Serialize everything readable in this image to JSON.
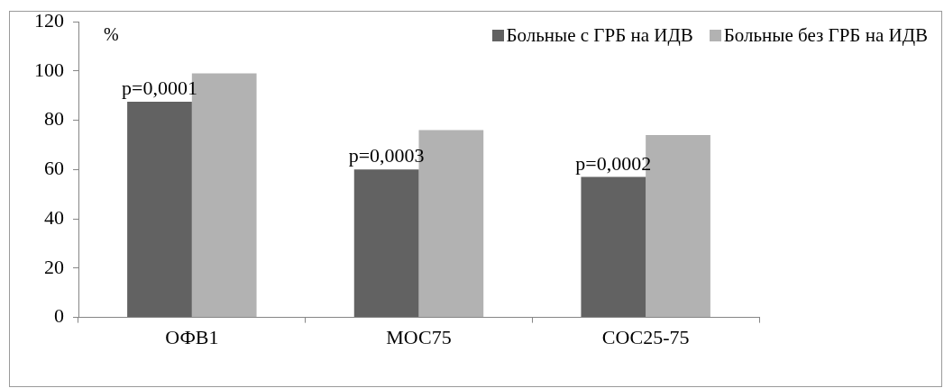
{
  "chart_data": {
    "type": "bar",
    "ylabel": "%",
    "categories": [
      "ОФВ1",
      "МОС75",
      "СОС25-75"
    ],
    "series": [
      {
        "name": "Больные с ГРБ на ИДВ",
        "color": "#626262",
        "values": [
          87.5,
          60,
          57
        ]
      },
      {
        "name": "Больные без ГРБ на ИДВ",
        "color": "#b2b2b2",
        "values": [
          99,
          76,
          74
        ]
      }
    ],
    "ylim": [
      0,
      120
    ],
    "yticks": [
      0,
      20,
      40,
      60,
      80,
      100,
      120
    ],
    "legend": "top right",
    "annotations": [
      {
        "text": "p=0,0001",
        "x": "ОФВ1",
        "y": 87.5
      },
      {
        "text": "p=0,0003",
        "x": "МОС75",
        "y": 60
      },
      {
        "text": "p=0,0002",
        "x": "СОС25-75",
        "y": 57
      }
    ]
  }
}
